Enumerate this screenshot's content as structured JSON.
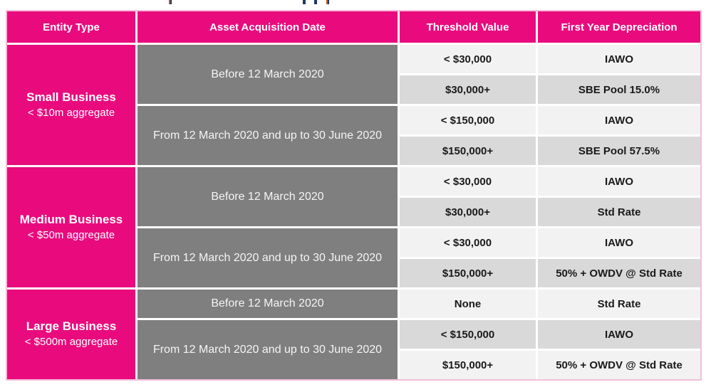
{
  "colors": {
    "magenta": "#e90b7d",
    "date_gray": "#7f7f7f",
    "row_light": "#f2f2f2",
    "row_dark": "#d9d9d9",
    "outer_border": "#f5bcd9",
    "header_text": "#ffffff",
    "body_text": "#1a1a1a",
    "cropped_fragment_navy": "#1f3864",
    "cropped_fragment_orange": "#c55a11"
  },
  "header": {
    "columns": [
      "Entity Type",
      "Asset Acquisition Date",
      "Threshold Value",
      "First Year Depreciation"
    ]
  },
  "sections": [
    {
      "entity": {
        "name": "Small Business",
        "subtitle": "< $10m aggregate"
      },
      "date_groups": [
        {
          "date": "Before 12 March 2020",
          "rows": [
            {
              "threshold": "< $30,000",
              "depreciation": "IAWO"
            },
            {
              "threshold": "$30,000+",
              "depreciation": "SBE Pool 15.0%"
            }
          ]
        },
        {
          "date": "From 12 March 2020 and up to 30 June 2020",
          "rows": [
            {
              "threshold": "< $150,000",
              "depreciation": "IAWO"
            },
            {
              "threshold": "$150,000+",
              "depreciation": "SBE Pool 57.5%"
            }
          ]
        }
      ]
    },
    {
      "entity": {
        "name": "Medium Business",
        "subtitle": "< $50m aggregate"
      },
      "date_groups": [
        {
          "date": "Before 12 March 2020",
          "rows": [
            {
              "threshold": "< $30,000",
              "depreciation": "IAWO"
            },
            {
              "threshold": "$30,000+",
              "depreciation": "Std Rate"
            }
          ]
        },
        {
          "date": "From 12 March 2020 and up to 30 June 2020",
          "rows": [
            {
              "threshold": "< $30,000",
              "depreciation": "IAWO"
            },
            {
              "threshold": "$150,000+",
              "depreciation": "50% + OWDV @ Std Rate"
            }
          ]
        }
      ]
    },
    {
      "entity": {
        "name": "Large Business",
        "subtitle": "< $500m aggregate"
      },
      "date_groups": [
        {
          "date": "Before 12 March 2020",
          "rows": [
            {
              "threshold": "None",
              "depreciation": "Std Rate"
            }
          ]
        },
        {
          "date": "From 12 March 2020 and up to 30 June 2020",
          "rows": [
            {
              "threshold": "< $150,000",
              "depreciation": "IAWO"
            },
            {
              "threshold": "$150,000+",
              "depreciation": "50% + OWDV @ Std Rate"
            }
          ]
        }
      ]
    }
  ]
}
